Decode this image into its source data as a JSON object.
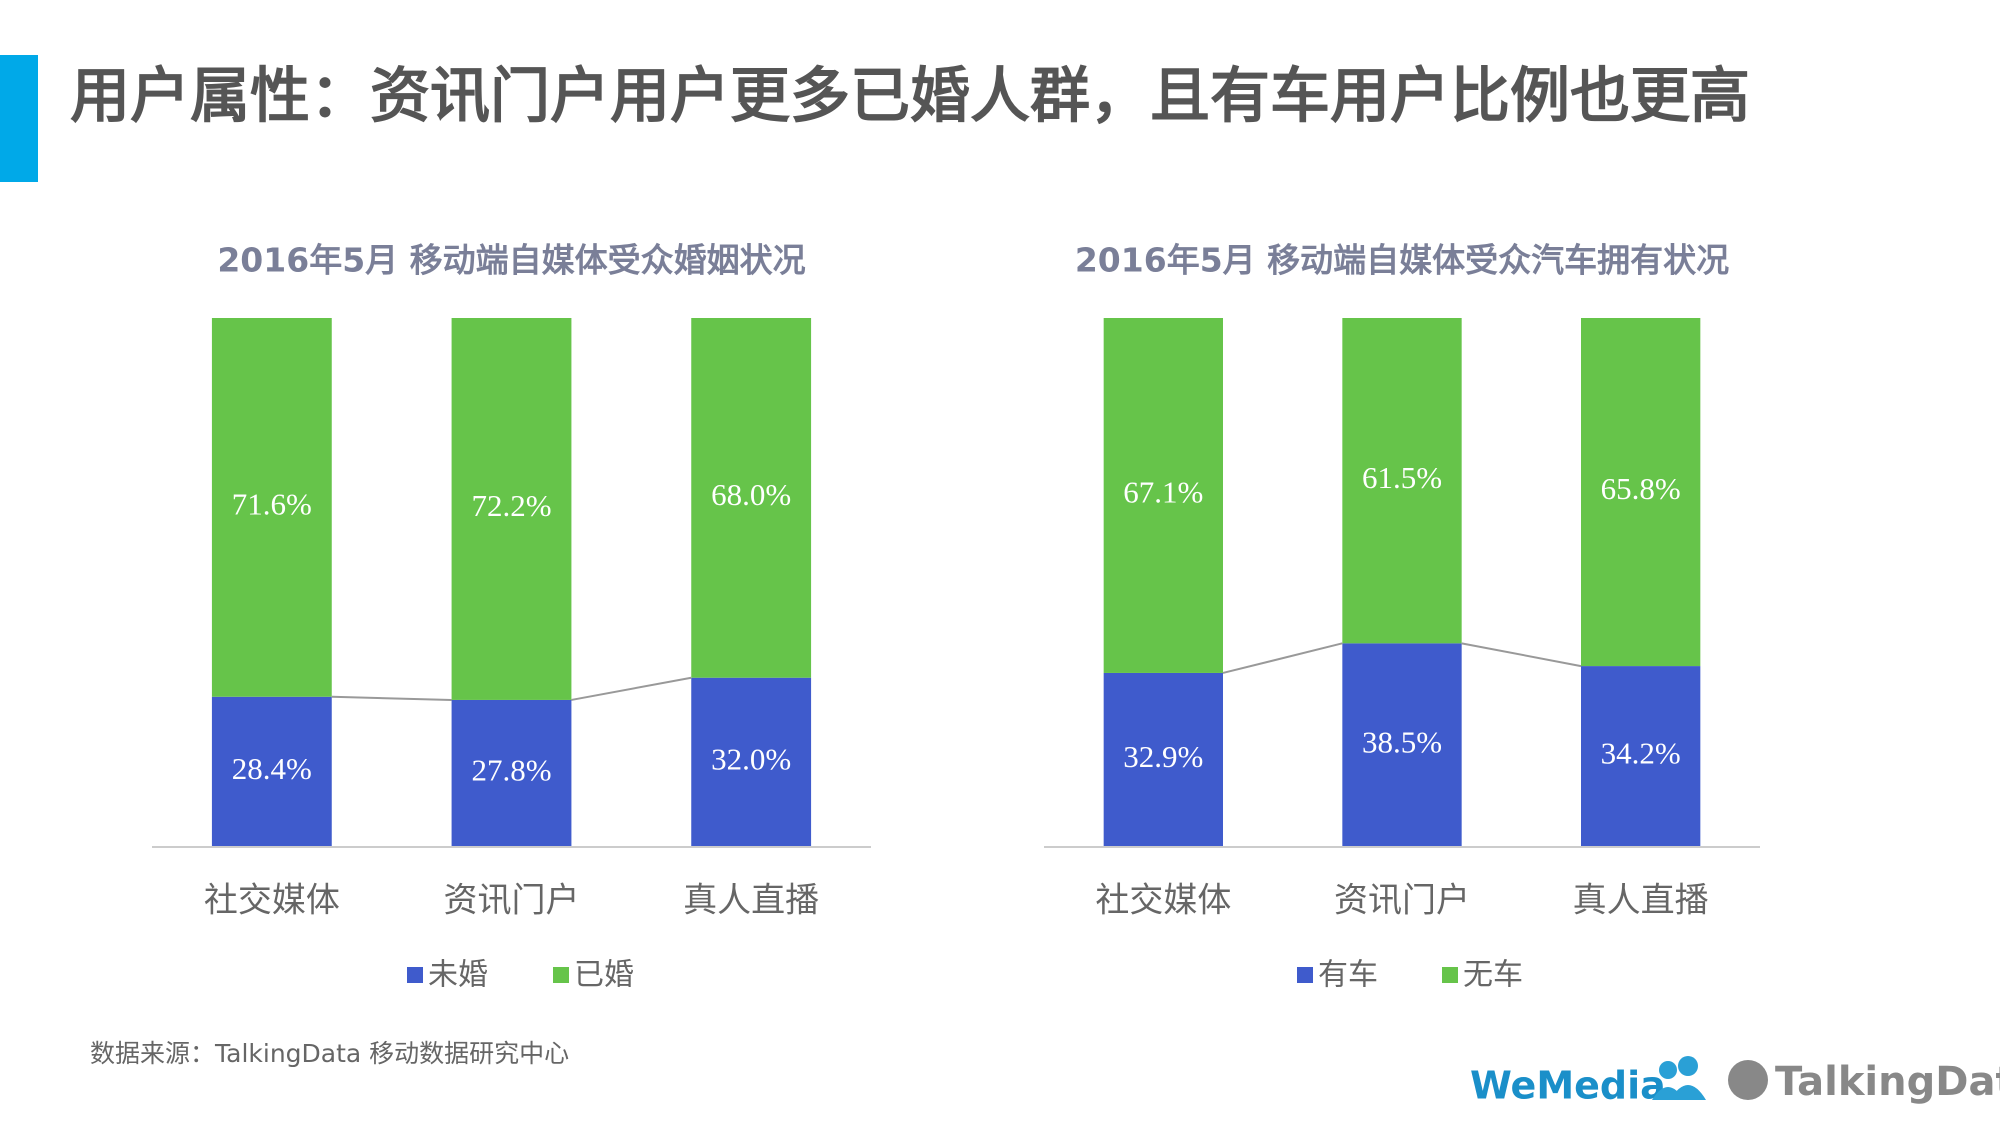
{
  "title": "用户属性：资讯门户用户更多已婚人群，且有车用户比例也更高",
  "source": "数据来源：TalkingData 移动数据研究中心",
  "logos": [
    "WeMedia",
    "TalkingData"
  ],
  "chart_data": [
    {
      "type": "bar",
      "stacked": true,
      "title": "2016年5月 移动端自媒体受众婚姻状况",
      "categories": [
        "社交媒体",
        "资讯门户",
        "真人直播"
      ],
      "ylim": [
        0,
        100
      ],
      "series": [
        {
          "name": "未婚",
          "color": "#3f5bcc",
          "values": [
            28.4,
            27.8,
            32.0
          ],
          "value_labels": [
            "28.4%",
            "27.8%",
            "32.0%"
          ]
        },
        {
          "name": "已婚",
          "color": "#66c44a",
          "values": [
            71.6,
            72.2,
            68.0
          ],
          "value_labels": [
            "71.6%",
            "72.2%",
            "68.0%"
          ]
        }
      ]
    },
    {
      "type": "bar",
      "stacked": true,
      "title": "2016年5月 移动端自媒体受众汽车拥有状况",
      "categories": [
        "社交媒体",
        "资讯门户",
        "真人直播"
      ],
      "ylim": [
        0,
        100
      ],
      "series": [
        {
          "name": "有车",
          "color": "#3f5bcc",
          "values": [
            32.9,
            38.5,
            34.2
          ],
          "value_labels": [
            "32.9%",
            "38.5%",
            "34.2%"
          ]
        },
        {
          "name": "无车",
          "color": "#66c44a",
          "values": [
            67.1,
            61.5,
            65.8
          ],
          "value_labels": [
            "67.1%",
            "61.5%",
            "65.8%"
          ]
        }
      ]
    }
  ]
}
